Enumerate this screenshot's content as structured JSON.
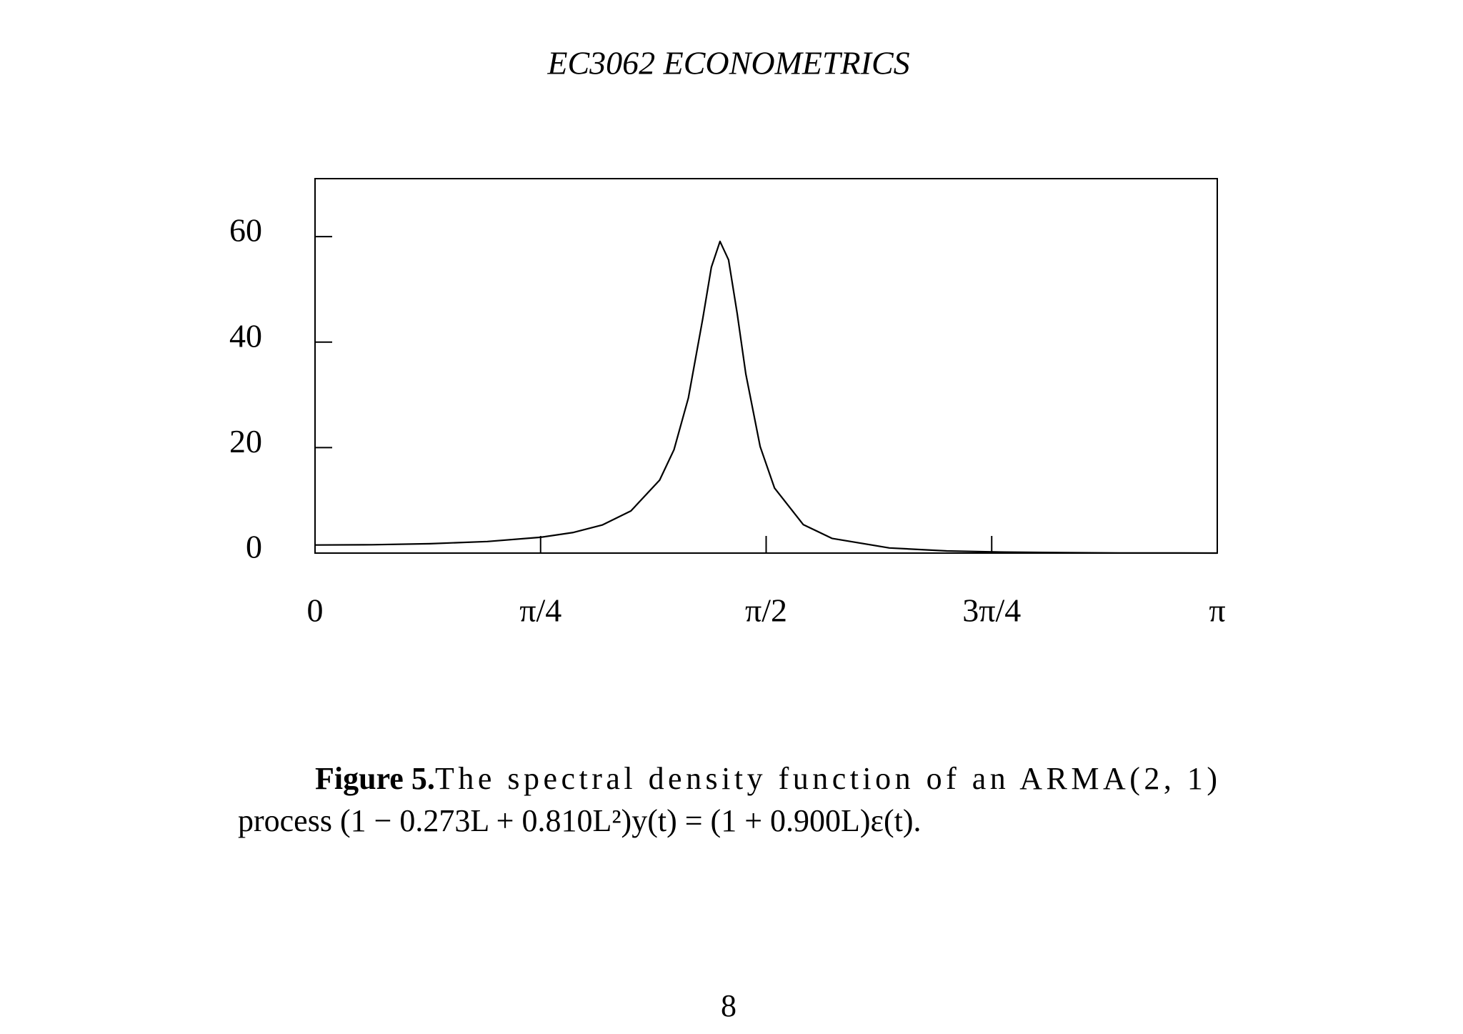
{
  "header": {
    "title": "EC3062 ECONOMETRICS"
  },
  "chart_data": {
    "type": "line",
    "x": [
      0,
      0.2,
      0.4,
      0.6,
      0.785,
      0.9,
      1.0,
      1.1,
      1.2,
      1.25,
      1.3,
      1.35,
      1.38,
      1.41,
      1.44,
      1.47,
      1.5,
      1.55,
      1.6,
      1.7,
      1.8,
      2.0,
      2.2,
      2.4,
      2.6,
      2.8,
      3.0,
      3.1416
    ],
    "values": [
      1.53,
      1.59,
      1.78,
      2.19,
      2.99,
      3.92,
      5.33,
      7.99,
      13.84,
      19.6,
      29.4,
      44.4,
      54.2,
      59.1,
      55.6,
      45.4,
      34.0,
      20.2,
      12.35,
      5.41,
      2.79,
      0.98,
      0.41,
      0.19,
      0.08,
      0.03,
      0.01,
      0
    ],
    "color": "#000000",
    "xlim": [
      0,
      3.1416
    ],
    "xticks": [
      0,
      {
        "value": 0.7854,
        "label": "π/4"
      },
      {
        "value": 1.5708,
        "label": "π/2"
      },
      {
        "value": 2.3562,
        "label": "3π/4"
      },
      {
        "value": 3.1416,
        "label": "π"
      }
    ],
    "ylim": [
      0,
      71
    ],
    "yticks": [
      0,
      20,
      40,
      60
    ],
    "grid": false
  },
  "caption": {
    "label": "Figure 5.",
    "lines": [
      "The spectral density function of an ARMA(2, 1)",
      "process (1 − 0.273L + 0.810L²)y(t) = (1 + 0.900L)ε(t)."
    ]
  },
  "page_number": "8"
}
